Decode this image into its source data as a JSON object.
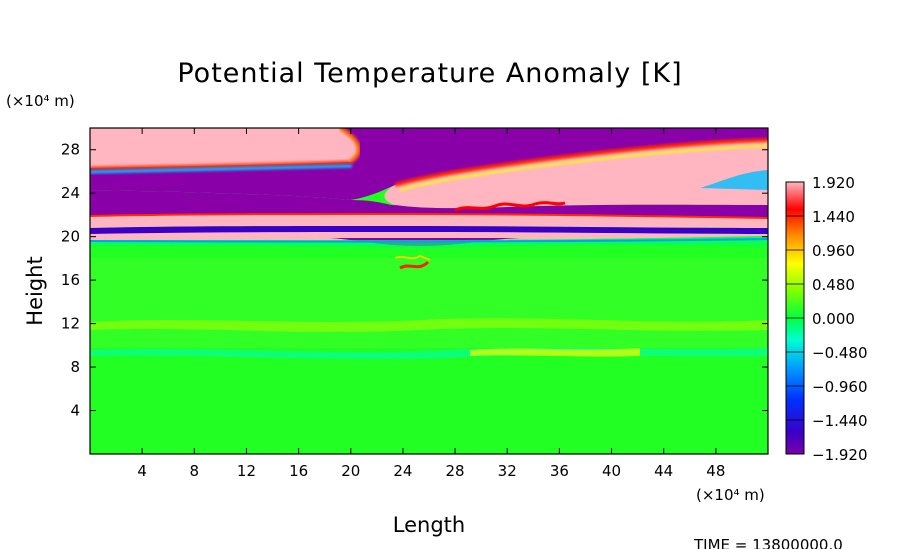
{
  "chart_data": {
    "type": "heatmap",
    "title": "Potential Temperature Anomaly [K]",
    "xlabel": "Length",
    "ylabel": "Height",
    "x_unit": "(×10⁴ m)",
    "y_unit": "(×10⁴ m)",
    "xlim": [
      0,
      52
    ],
    "ylim": [
      0,
      30
    ],
    "x_ticks": [
      "4",
      "8",
      "12",
      "16",
      "20",
      "24",
      "28",
      "32",
      "36",
      "40",
      "44",
      "48"
    ],
    "y_ticks": [
      "4",
      "8",
      "12",
      "16",
      "20",
      "24",
      "28"
    ],
    "x_tick_values": [
      4,
      8,
      12,
      16,
      20,
      24,
      28,
      32,
      36,
      40,
      44,
      48
    ],
    "y_tick_values": [
      4,
      8,
      12,
      16,
      20,
      24,
      28
    ],
    "colorbar": {
      "min": -1.92,
      "max": 1.92,
      "labels": [
        "1.920",
        "1.440",
        "0.960",
        "0.480",
        "0.000",
        "−0.480",
        "−0.960",
        "−1.440",
        "−1.920"
      ],
      "label_values": [
        1.92,
        1.44,
        0.96,
        0.48,
        0.0,
        -0.48,
        -0.96,
        -1.44,
        -1.92
      ],
      "colors": [
        "#ffb6c1",
        "#ff0000",
        "#ff6a00",
        "#ffff00",
        "#00ff00",
        "#00ffff",
        "#0000ff",
        "#8a00b4"
      ]
    },
    "footer_text": "TIME = 13800000.0"
  }
}
